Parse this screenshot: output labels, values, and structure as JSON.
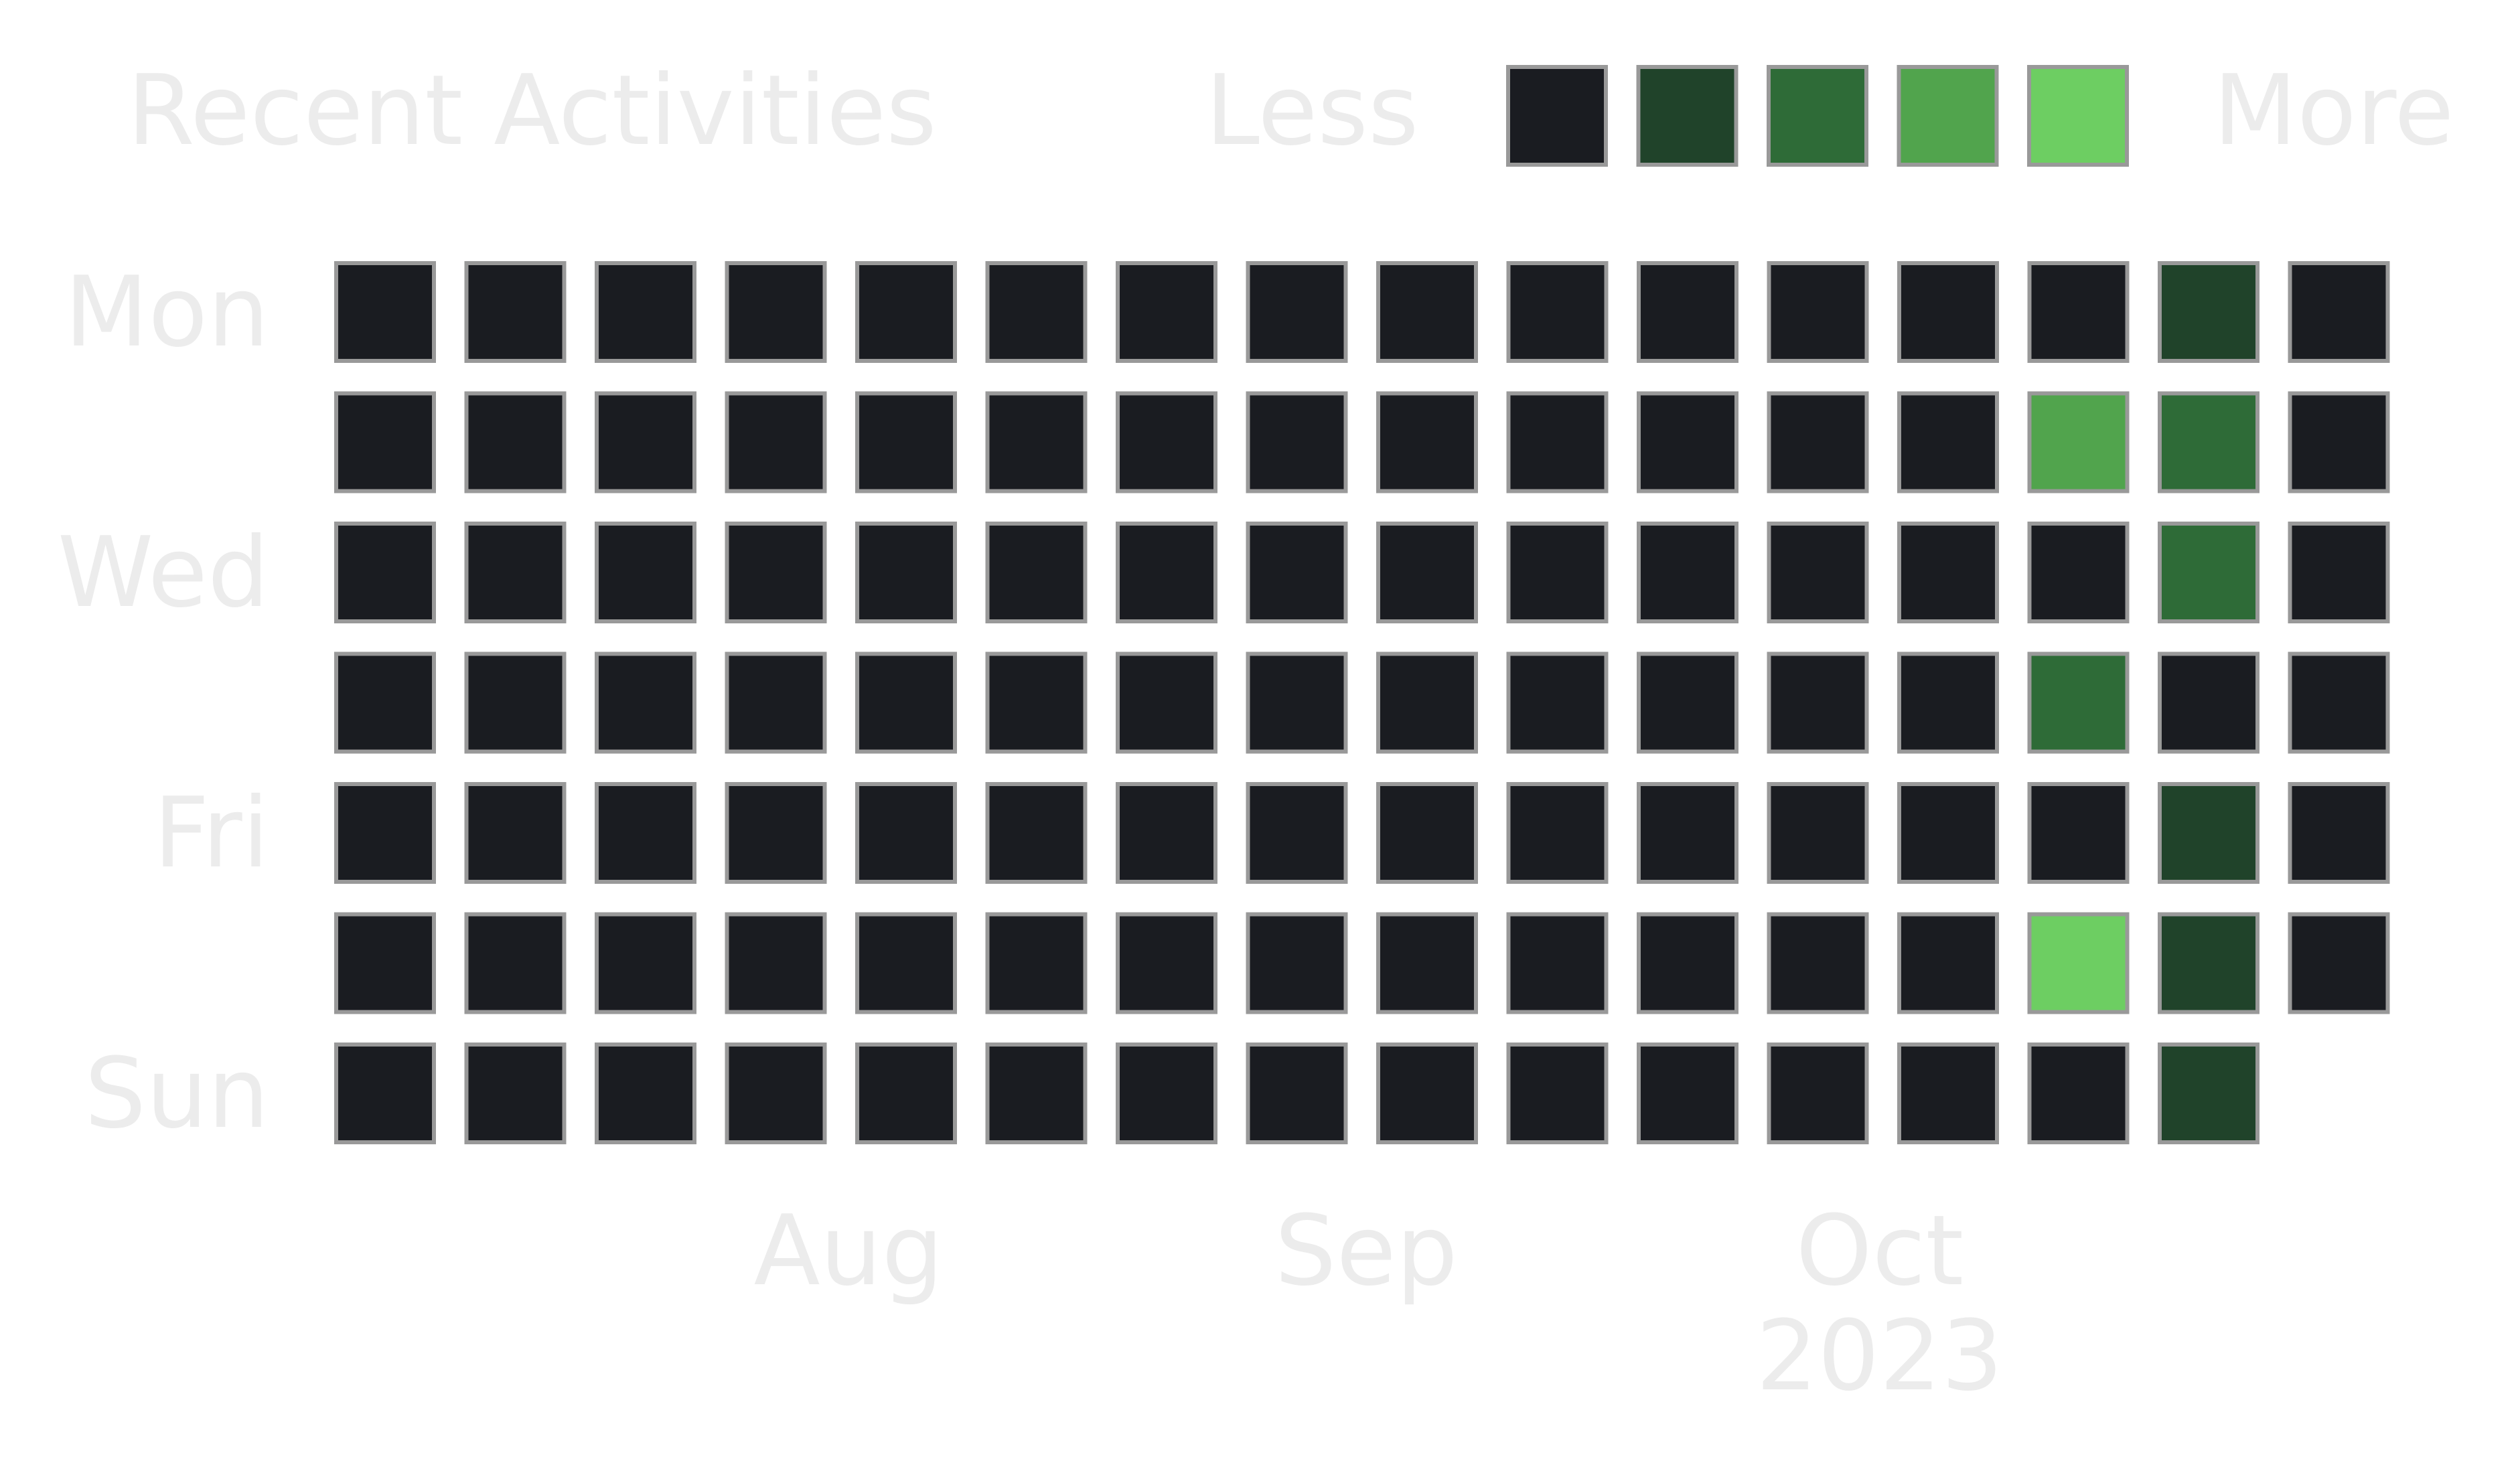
{
  "chart_data": {
    "type": "heatmap",
    "title": "Recent Activities",
    "legend": {
      "less_label": "Less",
      "more_label": "More",
      "levels": [
        0,
        1,
        2,
        3,
        4
      ],
      "placement": "top-right"
    },
    "colors": [
      "#1a1c21",
      "#20432a",
      "#2e6b37",
      "#51a44d",
      "#6dce62"
    ],
    "cell_border_color": "#999999",
    "text_color": "#ececec",
    "row_labels": [
      "Mon",
      "",
      "Wed",
      "",
      "Fri",
      "",
      "Sun"
    ],
    "month_labels": [
      {
        "label": "Aug",
        "week": 3
      },
      {
        "label": "Sep",
        "week": 7
      },
      {
        "label": "Oct",
        "week": 11
      }
    ],
    "year_label": "2023",
    "weeks": 16,
    "values": [
      [
        0,
        0,
        0,
        0,
        0,
        0,
        0,
        0,
        0,
        0,
        0,
        0,
        0,
        0,
        1,
        0
      ],
      [
        0,
        0,
        0,
        0,
        0,
        0,
        0,
        0,
        0,
        0,
        0,
        0,
        0,
        3,
        2,
        0
      ],
      [
        0,
        0,
        0,
        0,
        0,
        0,
        0,
        0,
        0,
        0,
        0,
        0,
        0,
        0,
        2,
        0
      ],
      [
        0,
        0,
        0,
        0,
        0,
        0,
        0,
        0,
        0,
        0,
        0,
        0,
        0,
        2,
        0,
        0
      ],
      [
        0,
        0,
        0,
        0,
        0,
        0,
        0,
        0,
        0,
        0,
        0,
        0,
        0,
        0,
        1,
        0
      ],
      [
        0,
        0,
        0,
        0,
        0,
        0,
        0,
        0,
        0,
        0,
        0,
        0,
        0,
        4,
        1,
        0
      ],
      [
        0,
        0,
        0,
        0,
        0,
        0,
        0,
        0,
        0,
        0,
        0,
        0,
        0,
        0,
        1,
        null
      ]
    ]
  }
}
